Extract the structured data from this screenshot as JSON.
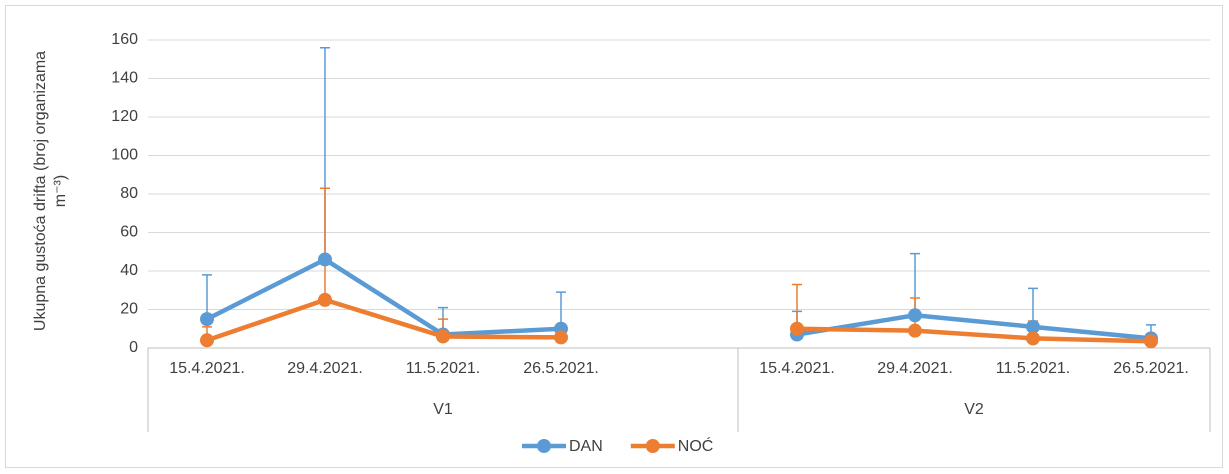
{
  "chart_data": {
    "type": "line",
    "ylabel": "Ukupna gustoća drifta (broj organizama m⁻³)",
    "categories": [
      "15.4.2021.",
      "29.4.2021.",
      "11.5.2021.",
      "26.5.2021.",
      null,
      "15.4.2021.",
      "29.4.2021.",
      "11.5.2021.",
      "26.5.2021."
    ],
    "groups": [
      {
        "name": "V1",
        "size": 5
      },
      {
        "name": "V2",
        "size": 4
      }
    ],
    "series": [
      {
        "name": "DAN",
        "color": "#5b9bd5",
        "values": [
          15,
          46,
          7,
          10,
          null,
          7,
          17,
          11,
          5
        ],
        "errors": [
          23,
          110,
          14,
          19,
          null,
          12,
          32,
          20,
          7
        ]
      },
      {
        "name": "NOĆ",
        "color": "#ed7d31",
        "values": [
          4,
          25,
          6,
          5.5,
          null,
          10,
          9,
          5,
          3.5
        ],
        "errors": [
          7,
          58,
          9,
          1,
          null,
          23,
          17,
          9,
          2
        ]
      }
    ],
    "ylim": [
      0,
      160
    ],
    "yticks": [
      0,
      20,
      40,
      60,
      80,
      100,
      120,
      140,
      160
    ],
    "grid": true,
    "legend": "bottom"
  }
}
